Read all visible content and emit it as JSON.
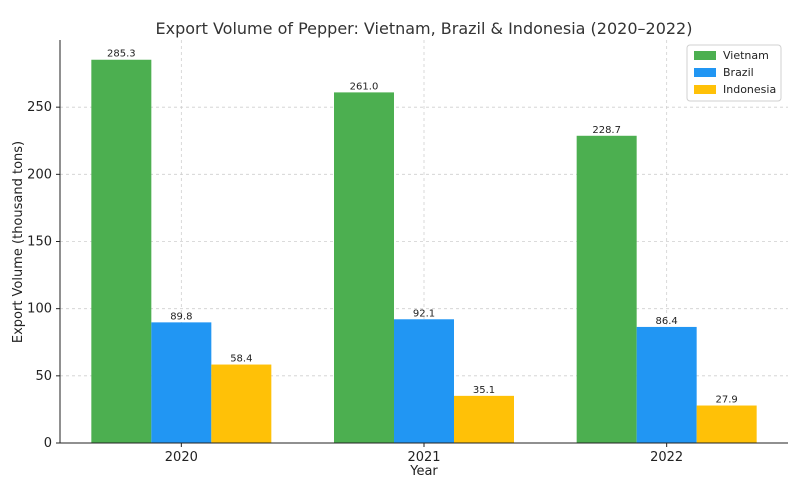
{
  "chart_data": {
    "type": "bar",
    "title": "Export Volume of Pepper: Vietnam, Brazil & Indonesia (2020–2022)",
    "xlabel": "Year",
    "ylabel": "Export Volume (thousand tons)",
    "categories": [
      "2020",
      "2021",
      "2022"
    ],
    "ylim": [
      0,
      300
    ],
    "yticks": [
      0,
      50,
      100,
      150,
      200,
      250
    ],
    "grid": true,
    "legend_position": "top-right",
    "series": [
      {
        "name": "Vietnam",
        "color": "#4CAF50",
        "values": [
          285.3,
          261.0,
          228.7
        ],
        "labels": [
          "285.3",
          "261.0",
          "228.7"
        ]
      },
      {
        "name": "Brazil",
        "color": "#2196F3",
        "values": [
          89.8,
          92.1,
          86.4
        ],
        "labels": [
          "89.8",
          "92.1",
          "86.4"
        ]
      },
      {
        "name": "Indonesia",
        "color": "#FFC107",
        "values": [
          58.4,
          35.1,
          27.9
        ],
        "labels": [
          "58.4",
          "35.1",
          "27.9"
        ]
      }
    ]
  }
}
